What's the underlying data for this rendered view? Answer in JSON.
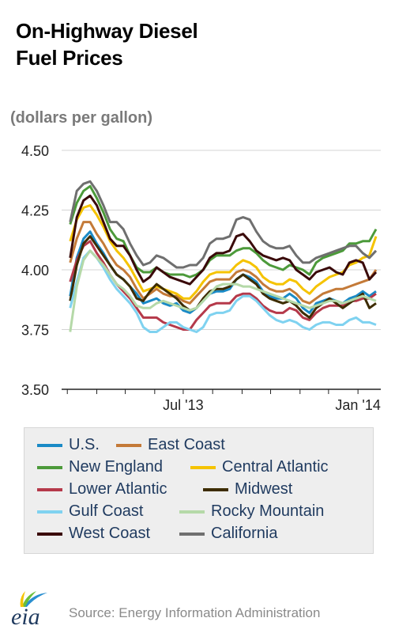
{
  "title_line1": "On-Highway Diesel",
  "title_line2": "Fuel Prices",
  "subtitle": "(dollars per gallon)",
  "source": "Source: Energy Information Administration",
  "logo_text": "eia",
  "chart_data": {
    "type": "line",
    "x": [
      "2013-03-04",
      "2013-03-11",
      "2013-03-18",
      "2013-03-25",
      "2013-04-01",
      "2013-04-08",
      "2013-04-15",
      "2013-04-22",
      "2013-04-29",
      "2013-05-06",
      "2013-05-13",
      "2013-05-20",
      "2013-05-27",
      "2013-06-03",
      "2013-06-10",
      "2013-06-17",
      "2013-06-24",
      "2013-07-01",
      "2013-07-08",
      "2013-07-15",
      "2013-07-22",
      "2013-07-29",
      "2013-08-05",
      "2013-08-12",
      "2013-08-19",
      "2013-08-26",
      "2013-09-02",
      "2013-09-09",
      "2013-09-16",
      "2013-09-23",
      "2013-09-30",
      "2013-10-07",
      "2013-10-14",
      "2013-10-21",
      "2013-10-28",
      "2013-11-04",
      "2013-11-11",
      "2013-11-18",
      "2013-11-25",
      "2013-12-02",
      "2013-12-09",
      "2013-12-16",
      "2013-12-23",
      "2013-12-30",
      "2014-01-06",
      "2014-01-13",
      "2014-01-20"
    ],
    "x_ticks": [
      "Jul '13",
      "Jan '14"
    ],
    "ylim": [
      3.5,
      4.5
    ],
    "y_ticks": [
      "3.50",
      "3.75",
      "4.00",
      "4.25",
      "4.50"
    ],
    "grid": true,
    "series": [
      {
        "name": "U.S.",
        "color": "#1a8ac6",
        "values": [
          3.89,
          4.05,
          4.13,
          4.16,
          4.11,
          4.07,
          4.02,
          3.98,
          3.96,
          3.93,
          3.9,
          3.86,
          3.87,
          3.88,
          3.86,
          3.85,
          3.86,
          3.83,
          3.82,
          3.84,
          3.87,
          3.9,
          3.91,
          3.91,
          3.92,
          3.96,
          3.98,
          3.97,
          3.95,
          3.91,
          3.89,
          3.88,
          3.88,
          3.9,
          3.88,
          3.84,
          3.82,
          3.86,
          3.87,
          3.88,
          3.87,
          3.86,
          3.88,
          3.89,
          3.91,
          3.89,
          3.91
        ]
      },
      {
        "name": "East Coast",
        "color": "#c47a38",
        "values": [
          4.03,
          4.13,
          4.2,
          4.2,
          4.15,
          4.11,
          4.06,
          4.02,
          4.0,
          3.97,
          3.92,
          3.88,
          3.9,
          3.92,
          3.9,
          3.89,
          3.89,
          3.87,
          3.86,
          3.89,
          3.92,
          3.95,
          3.96,
          3.96,
          3.96,
          3.99,
          4.0,
          3.99,
          3.97,
          3.94,
          3.92,
          3.91,
          3.91,
          3.92,
          3.9,
          3.87,
          3.86,
          3.88,
          3.9,
          3.91,
          3.92,
          3.92,
          3.93,
          3.94,
          3.95,
          3.96,
          4.0
        ]
      },
      {
        "name": "New England",
        "color": "#4c9a3a",
        "values": [
          4.19,
          4.28,
          4.33,
          4.35,
          4.3,
          4.24,
          4.17,
          4.13,
          4.12,
          4.06,
          4.01,
          3.99,
          3.99,
          4.01,
          3.99,
          3.98,
          3.98,
          3.98,
          3.97,
          3.98,
          4.0,
          4.04,
          4.06,
          4.06,
          4.06,
          4.08,
          4.09,
          4.09,
          4.07,
          4.04,
          4.02,
          4.01,
          4.0,
          4.02,
          4.01,
          4.0,
          3.98,
          4.03,
          4.05,
          4.06,
          4.07,
          4.08,
          4.11,
          4.11,
          4.12,
          4.12,
          4.17
        ]
      },
      {
        "name": "Central Atlantic",
        "color": "#f5c300",
        "values": [
          4.12,
          4.21,
          4.26,
          4.27,
          4.23,
          4.18,
          4.12,
          4.08,
          4.05,
          4.01,
          3.96,
          3.91,
          3.92,
          3.93,
          3.92,
          3.91,
          3.9,
          3.88,
          3.88,
          3.91,
          3.95,
          3.98,
          3.99,
          3.99,
          3.99,
          4.02,
          4.04,
          4.03,
          4.01,
          3.97,
          3.95,
          3.94,
          3.94,
          3.96,
          3.95,
          3.92,
          3.9,
          3.93,
          3.95,
          3.97,
          3.98,
          3.99,
          4.02,
          4.03,
          4.05,
          4.06,
          4.14
        ]
      },
      {
        "name": "Lower Atlantic",
        "color": "#b5394a",
        "values": [
          3.95,
          4.04,
          4.1,
          4.12,
          4.07,
          4.03,
          3.98,
          3.94,
          3.91,
          3.88,
          3.84,
          3.8,
          3.8,
          3.8,
          3.78,
          3.77,
          3.76,
          3.75,
          3.75,
          3.79,
          3.82,
          3.85,
          3.86,
          3.86,
          3.86,
          3.89,
          3.9,
          3.9,
          3.88,
          3.85,
          3.83,
          3.82,
          3.82,
          3.84,
          3.83,
          3.8,
          3.79,
          3.82,
          3.84,
          3.85,
          3.85,
          3.85,
          3.87,
          3.87,
          3.88,
          3.88,
          3.9
        ]
      },
      {
        "name": "Midwest",
        "color": "#3d2c00",
        "values": [
          3.87,
          4.02,
          4.11,
          4.14,
          4.1,
          4.06,
          4.02,
          3.98,
          3.96,
          3.93,
          3.88,
          3.87,
          3.91,
          3.94,
          3.92,
          3.9,
          3.88,
          3.85,
          3.83,
          3.84,
          3.88,
          3.91,
          3.92,
          3.92,
          3.93,
          3.96,
          3.98,
          3.96,
          3.94,
          3.9,
          3.88,
          3.87,
          3.86,
          3.87,
          3.85,
          3.82,
          3.8,
          3.84,
          3.86,
          3.88,
          3.86,
          3.84,
          3.86,
          3.88,
          3.9,
          3.84,
          3.86
        ]
      },
      {
        "name": "Gulf Coast",
        "color": "#7fd2f0",
        "values": [
          3.84,
          3.95,
          4.05,
          4.08,
          4.05,
          4.01,
          3.96,
          3.92,
          3.89,
          3.86,
          3.82,
          3.76,
          3.74,
          3.74,
          3.76,
          3.78,
          3.78,
          3.76,
          3.75,
          3.74,
          3.76,
          3.81,
          3.82,
          3.82,
          3.83,
          3.87,
          3.89,
          3.89,
          3.87,
          3.84,
          3.81,
          3.79,
          3.78,
          3.79,
          3.78,
          3.76,
          3.75,
          3.77,
          3.78,
          3.78,
          3.77,
          3.77,
          3.79,
          3.8,
          3.78,
          3.78,
          3.77
        ]
      },
      {
        "name": "Rocky Mountain",
        "color": "#b5d9a8",
        "values": [
          3.74,
          3.93,
          4.04,
          4.08,
          4.05,
          4.02,
          3.98,
          3.94,
          3.92,
          3.89,
          3.85,
          3.84,
          3.84,
          3.86,
          3.87,
          3.86,
          3.85,
          3.84,
          3.83,
          3.84,
          3.87,
          3.9,
          3.93,
          3.94,
          3.94,
          3.94,
          3.93,
          3.93,
          3.92,
          3.91,
          3.9,
          3.89,
          3.88,
          3.87,
          3.86,
          3.85,
          3.84,
          3.85,
          3.86,
          3.87,
          3.87,
          3.86,
          3.87,
          3.88,
          3.89,
          3.88,
          3.87
        ]
      },
      {
        "name": "West Coast",
        "color": "#3a0a0a",
        "values": [
          4.05,
          4.22,
          4.29,
          4.31,
          4.27,
          4.2,
          4.13,
          4.1,
          4.1,
          4.06,
          4.0,
          3.95,
          3.97,
          4.01,
          3.99,
          3.97,
          3.96,
          3.95,
          3.94,
          3.97,
          4.0,
          4.05,
          4.07,
          4.07,
          4.08,
          4.14,
          4.15,
          4.12,
          4.08,
          4.06,
          4.05,
          4.04,
          4.05,
          4.04,
          4.0,
          3.98,
          3.96,
          3.99,
          4.0,
          4.01,
          3.99,
          3.98,
          4.03,
          4.04,
          4.03,
          3.96,
          3.99
        ]
      },
      {
        "name": "California",
        "color": "#6f6f6f",
        "values": [
          4.2,
          4.33,
          4.36,
          4.37,
          4.33,
          4.27,
          4.2,
          4.2,
          4.17,
          4.11,
          4.06,
          4.02,
          4.03,
          4.06,
          4.05,
          4.03,
          4.01,
          4.01,
          4.02,
          4.02,
          4.05,
          4.11,
          4.13,
          4.13,
          4.14,
          4.21,
          4.22,
          4.21,
          4.16,
          4.12,
          4.1,
          4.09,
          4.09,
          4.1,
          4.06,
          4.03,
          4.03,
          4.05,
          4.06,
          4.07,
          4.08,
          4.09,
          4.1,
          4.1,
          4.07,
          4.05,
          4.08
        ]
      }
    ],
    "legend_position": "bottom"
  }
}
